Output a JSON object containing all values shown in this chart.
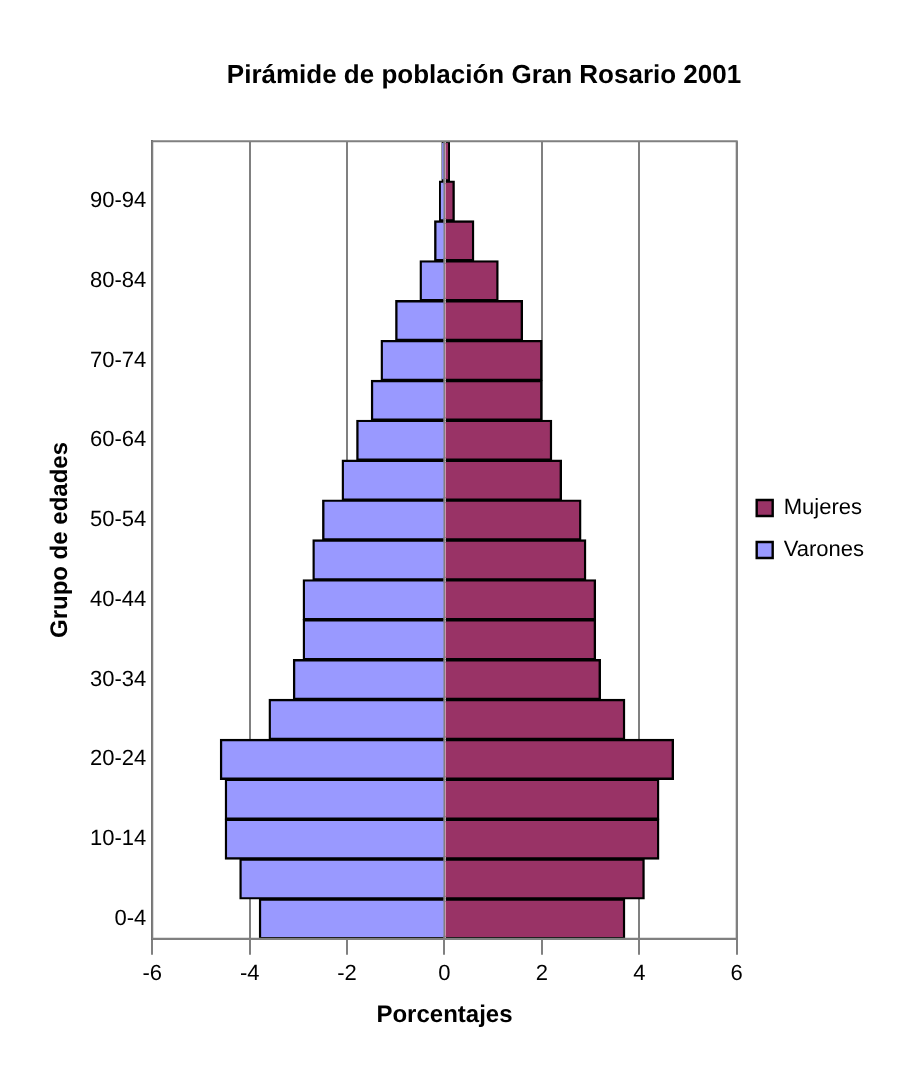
{
  "chart_data": {
    "type": "bar",
    "orientation": "horizontal",
    "stacked": true,
    "title": "Pirámide de población Gran Rosario 2001",
    "xlabel": "Porcentajes",
    "ylabel": "Grupo de edades",
    "categories": [
      null,
      "90-94",
      null,
      "80-84",
      null,
      "70-74",
      null,
      "60-64",
      null,
      "50-54",
      null,
      "40-44",
      null,
      "30-34",
      null,
      "20-24",
      null,
      "10-14",
      null,
      "0-4"
    ],
    "series": [
      {
        "name": "Mujeres",
        "color": "#993366",
        "values": [
          0.1,
          0.2,
          0.6,
          1.1,
          1.6,
          2.0,
          2.0,
          2.2,
          2.4,
          2.8,
          2.9,
          3.1,
          3.1,
          3.2,
          3.7,
          4.7,
          4.4,
          4.4,
          4.1,
          3.7
        ]
      },
      {
        "name": "Varones",
        "color": "#9999ff",
        "values": [
          -0.05,
          -0.1,
          -0.2,
          -0.5,
          -1.0,
          -1.3,
          -1.5,
          -1.8,
          -2.1,
          -2.5,
          -2.7,
          -2.9,
          -2.9,
          -3.1,
          -3.6,
          -4.6,
          -4.5,
          -4.5,
          -4.2,
          -3.8
        ]
      }
    ],
    "xlim": [
      -6,
      6
    ],
    "xticks": [
      -6,
      -4,
      -2,
      0,
      2,
      4,
      6
    ],
    "grid": "x",
    "legend": "right"
  }
}
